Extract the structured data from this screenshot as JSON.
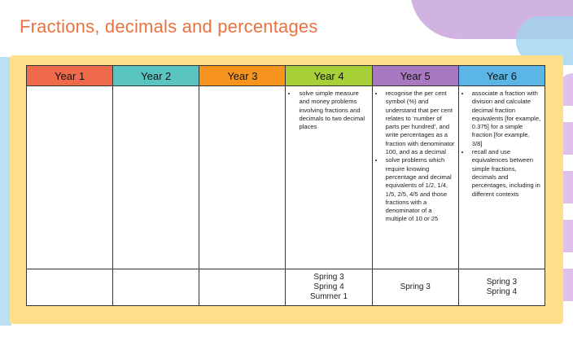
{
  "title": "Fractions, decimals and percentages",
  "columns": [
    {
      "label": "Year 1",
      "color": "#ef6a4a"
    },
    {
      "label": "Year 2",
      "color": "#5ac4c0"
    },
    {
      "label": "Year 3",
      "color": "#f7941d"
    },
    {
      "label": "Year 4",
      "color": "#a6cf38"
    },
    {
      "label": "Year 5",
      "color": "#a879c0"
    },
    {
      "label": "Year 6",
      "color": "#5bb6e6"
    }
  ],
  "objectives": {
    "year4": [
      "solve simple measure and money problems involving fractions and decimals to two decimal places"
    ],
    "year5": [
      "recognise the per cent symbol (%) and understand that per cent relates to ‘number of parts per hundred’, and write percentages as a fraction with denominator 100, and as a decimal",
      "solve problems which require knowing percentage and decimal equivalents of 1/2, 1/4, 1/5, 2/5, 4/5 and those fractions with a denominator of a multiple of 10 or 25"
    ],
    "year6": [
      "associate a fraction with division and calculate decimal fraction equivalents [for example, 0.375] for a simple fraction [for example, 3/8]",
      "recall and use equivalences between simple fractions, decimals and percentages, including in different contexts"
    ]
  },
  "terms": {
    "year4": [
      "Spring 3",
      "Spring 4",
      "Summer 1"
    ],
    "year5": [
      "Spring 3"
    ],
    "year6": [
      "Spring 3",
      "Spring 4"
    ]
  }
}
